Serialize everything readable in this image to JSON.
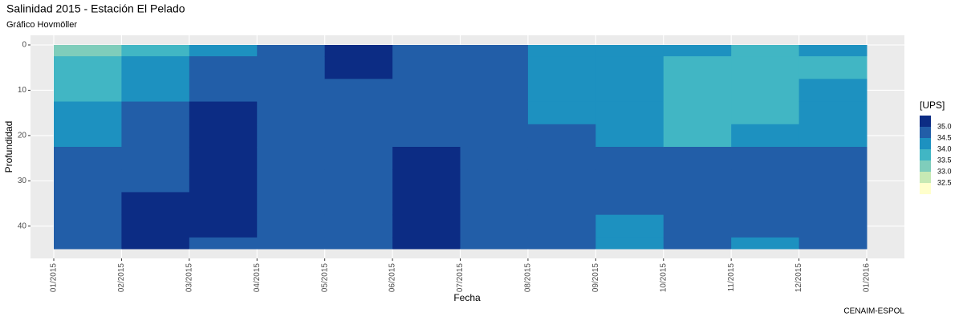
{
  "chart_data": {
    "type": "hovmoller",
    "title": "Salinidad 2015 - Estación El Pelado",
    "subtitle": "Gráfico Hovmöller",
    "x_label": "Fecha",
    "y_label": "Profundidad",
    "caption": "CENAIM-ESPOL",
    "legend_title": "[UPS]",
    "x": [
      "2015-01",
      "2015-02",
      "2015-03",
      "2015-04",
      "2015-05",
      "2015-06",
      "2015-07",
      "2015-08",
      "2015-09",
      "2015-10",
      "2015-11",
      "2015-12"
    ],
    "depths": [
      0,
      5,
      10,
      15,
      20,
      25,
      30,
      35,
      40,
      45
    ],
    "values": [
      [
        33.3,
        33.7,
        33.8,
        34.2,
        34.3,
        34.6,
        34.7,
        34.7,
        34.7,
        34.7
      ],
      [
        33.8,
        34.2,
        34.3,
        34.6,
        34.6,
        34.6,
        34.8,
        35.1,
        35.1,
        35.1
      ],
      [
        34.3,
        34.6,
        34.7,
        35.1,
        35.1,
        35.1,
        35.1,
        35.1,
        35.1,
        34.8
      ],
      [
        34.7,
        34.7,
        34.7,
        34.8,
        34.8,
        34.8,
        34.8,
        34.8,
        34.8,
        34.8
      ],
      [
        35.1,
        35.1,
        34.8,
        34.8,
        34.8,
        34.8,
        34.8,
        34.8,
        34.8,
        34.8
      ],
      [
        34.8,
        34.8,
        34.8,
        34.8,
        34.9,
        35.1,
        35.1,
        35.1,
        35.1,
        35.1
      ],
      [
        34.8,
        34.8,
        34.8,
        34.8,
        34.8,
        34.8,
        34.8,
        34.8,
        34.8,
        34.8
      ],
      [
        34.3,
        34.3,
        34.4,
        34.4,
        34.6,
        34.7,
        34.7,
        34.7,
        34.7,
        34.7
      ],
      [
        34.1,
        34.1,
        34.2,
        34.3,
        34.4,
        34.6,
        34.6,
        34.6,
        34.3,
        34.3
      ],
      [
        34.3,
        33.8,
        33.8,
        33.8,
        33.9,
        34.6,
        34.7,
        34.7,
        34.7,
        34.7
      ],
      [
        33.8,
        33.8,
        33.8,
        33.8,
        34.3,
        34.6,
        34.6,
        34.6,
        34.6,
        34.3
      ],
      [
        34.2,
        33.9,
        34.2,
        34.3,
        34.3,
        34.6,
        34.6,
        34.6,
        34.6,
        34.6
      ]
    ],
    "levels": [
      {
        "value": 35,
        "label": "35.0"
      },
      {
        "value": 34.5,
        "label": "34.5"
      },
      {
        "value": 34,
        "label": "34.0"
      },
      {
        "value": 33.5,
        "label": "33.5"
      },
      {
        "value": 33,
        "label": "33.0"
      },
      {
        "value": 32.5,
        "label": "32.5"
      }
    ],
    "colors": [
      "#0c2c84",
      "#225ea8",
      "#1d91c0",
      "#41b6c4",
      "#7fcdbb",
      "#c7e9b4",
      "#ffffcc"
    ],
    "xlim": [
      "2015-01",
      "2016-01"
    ],
    "xticks": [
      {
        "value": "2015-01",
        "label": "01/2015"
      },
      {
        "value": "2015-02",
        "label": "02/2015"
      },
      {
        "value": "2015-03",
        "label": "03/2015"
      },
      {
        "value": "2015-04",
        "label": "04/2015"
      },
      {
        "value": "2015-05",
        "label": "05/2015"
      },
      {
        "value": "2015-06",
        "label": "06/2015"
      },
      {
        "value": "2015-07",
        "label": "07/2015"
      },
      {
        "value": "2015-08",
        "label": "08/2015"
      },
      {
        "value": "2015-09",
        "label": "09/2015"
      },
      {
        "value": "2015-10",
        "label": "10/2015"
      },
      {
        "value": "2015-11",
        "label": "11/2015"
      },
      {
        "value": "2015-12",
        "label": "12/2015"
      },
      {
        "value": "2016-01",
        "label": "01/2016"
      }
    ],
    "ylim": [
      0,
      45
    ],
    "yticks": [
      0,
      10,
      20,
      30,
      40
    ],
    "y_reversed": true,
    "grid": true
  }
}
